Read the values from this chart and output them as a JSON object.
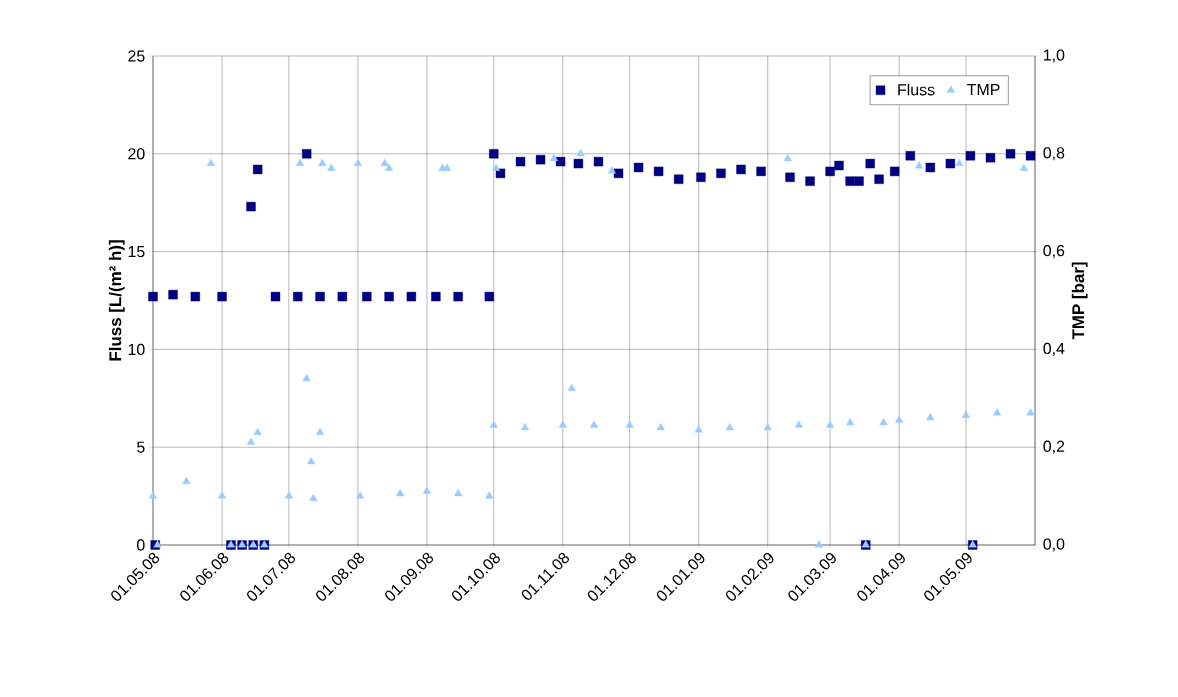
{
  "chart_data": {
    "type": "scatter",
    "ylabel": "Fluss [L/(m² h)]",
    "y2label": "TMP [bar]",
    "legend": "top right",
    "grid": true,
    "xlim": [
      "2008-05-01",
      "2009-06-01"
    ],
    "xticks": [
      {
        "value": "2008-05-01",
        "label": "01.05.08"
      },
      {
        "value": "2008-06-01",
        "label": "01.06.08"
      },
      {
        "value": "2008-07-01",
        "label": "01.07.08"
      },
      {
        "value": "2008-08-01",
        "label": "01.08.08"
      },
      {
        "value": "2008-09-01",
        "label": "01.09.08"
      },
      {
        "value": "2008-10-01",
        "label": "01.10.08"
      },
      {
        "value": "2008-11-01",
        "label": "01.11.08"
      },
      {
        "value": "2008-12-01",
        "label": "01.12.08"
      },
      {
        "value": "2009-01-01",
        "label": "01.01.09"
      },
      {
        "value": "2009-02-01",
        "label": "01.02.09"
      },
      {
        "value": "2009-03-01",
        "label": "01.03.09"
      },
      {
        "value": "2009-04-01",
        "label": "01.04.09"
      },
      {
        "value": "2009-05-01",
        "label": "01.05.09"
      },
      {
        "value": "2009-06-01",
        "label": null
      }
    ],
    "ylim": [
      0,
      25
    ],
    "yticks": [
      0,
      5,
      10,
      15,
      20,
      25
    ],
    "y2lim": [
      0,
      1
    ],
    "y2ticks": [
      {
        "value": 0,
        "label": "0,0"
      },
      {
        "value": 0.2,
        "label": "0,2"
      },
      {
        "value": 0.4,
        "label": "0,4"
      },
      {
        "value": 0.6,
        "label": "0,6"
      },
      {
        "value": 0.8,
        "label": "0,8"
      },
      {
        "value": 1,
        "label": "1,0"
      }
    ],
    "series": [
      {
        "name": "Fluss",
        "color": "#000080",
        "marker": "square",
        "x": [
          "2008-05-01",
          "2008-05-02",
          "2008-05-10",
          "2008-05-20",
          "2008-06-01",
          "2008-06-05",
          "2008-06-10",
          "2008-06-14",
          "2008-06-15",
          "2008-06-17",
          "2008-06-20",
          "2008-06-25",
          "2008-07-05",
          "2008-07-09",
          "2008-07-15",
          "2008-07-25",
          "2008-08-05",
          "2008-08-15",
          "2008-08-25",
          "2008-09-05",
          "2008-09-15",
          "2008-09-29",
          "2008-10-01",
          "2008-10-04",
          "2008-10-13",
          "2008-10-22",
          "2008-10-31",
          "2008-11-08",
          "2008-11-17",
          "2008-11-26",
          "2008-12-05",
          "2008-12-14",
          "2008-12-23",
          "2009-01-02",
          "2009-01-11",
          "2009-01-20",
          "2009-01-29",
          "2009-02-11",
          "2009-02-20",
          "2009-03-01",
          "2009-03-05",
          "2009-03-10",
          "2009-03-14",
          "2009-03-17",
          "2009-03-19",
          "2009-03-23",
          "2009-03-30",
          "2009-04-06",
          "2009-04-15",
          "2009-04-24",
          "2009-05-03",
          "2009-05-04",
          "2009-05-12",
          "2009-05-21",
          "2009-05-30"
        ],
        "values": [
          12.7,
          0,
          12.8,
          12.7,
          12.7,
          0,
          0,
          17.3,
          0,
          19.2,
          0,
          12.7,
          12.7,
          20.0,
          12.7,
          12.7,
          12.7,
          12.7,
          12.7,
          12.7,
          12.7,
          12.7,
          20.0,
          19.0,
          19.6,
          19.7,
          19.6,
          19.5,
          19.6,
          19.0,
          19.3,
          19.1,
          18.7,
          18.8,
          19.0,
          19.2,
          19.1,
          18.8,
          18.6,
          19.1,
          19.4,
          18.6,
          18.6,
          0,
          19.5,
          18.7,
          19.1,
          19.9,
          19.3,
          19.5,
          19.9,
          0,
          19.8,
          20.0,
          19.9
        ]
      },
      {
        "name": "TMP",
        "color": "#99ccff",
        "marker": "triangle",
        "axis": "y2",
        "x": [
          "2008-05-01",
          "2008-05-03",
          "2008-05-16",
          "2008-05-27",
          "2008-06-01",
          "2008-06-05",
          "2008-06-10",
          "2008-06-14",
          "2008-06-15",
          "2008-06-17",
          "2008-06-20",
          "2008-07-01",
          "2008-07-06",
          "2008-07-09",
          "2008-07-11",
          "2008-07-12",
          "2008-07-15",
          "2008-07-16",
          "2008-07-20",
          "2008-08-01",
          "2008-08-02",
          "2008-08-13",
          "2008-08-15",
          "2008-08-20",
          "2008-09-01",
          "2008-09-08",
          "2008-09-10",
          "2008-09-15",
          "2008-09-29",
          "2008-10-01",
          "2008-10-02",
          "2008-10-15",
          "2008-10-28",
          "2008-11-01",
          "2008-11-05",
          "2008-11-09",
          "2008-11-15",
          "2008-11-23",
          "2008-12-01",
          "2008-12-15",
          "2009-01-01",
          "2009-01-15",
          "2009-02-01",
          "2009-02-10",
          "2009-02-15",
          "2009-02-24",
          "2009-03-01",
          "2009-03-10",
          "2009-03-17",
          "2009-03-25",
          "2009-04-01",
          "2009-04-10",
          "2009-04-15",
          "2009-04-28",
          "2009-05-01",
          "2009-05-04",
          "2009-05-15",
          "2009-05-27",
          "2009-05-30"
        ],
        "values": [
          0.1,
          0,
          0.13,
          0.78,
          0.1,
          0,
          0,
          0.21,
          0,
          0.23,
          0,
          0.1,
          0.78,
          0.34,
          0.17,
          0.095,
          0.23,
          0.78,
          0.77,
          0.78,
          0.1,
          0.78,
          0.77,
          0.105,
          0.11,
          0.77,
          0.77,
          0.105,
          0.1,
          0.245,
          0.77,
          0.24,
          0.79,
          0.245,
          0.32,
          0.8,
          0.245,
          0.765,
          0.245,
          0.24,
          0.235,
          0.24,
          0.24,
          0.79,
          0.245,
          0,
          0.245,
          0.25,
          0,
          0.25,
          0.255,
          0.775,
          0.26,
          0.78,
          0.265,
          0,
          0.27,
          0.77,
          0.27
        ]
      }
    ]
  }
}
